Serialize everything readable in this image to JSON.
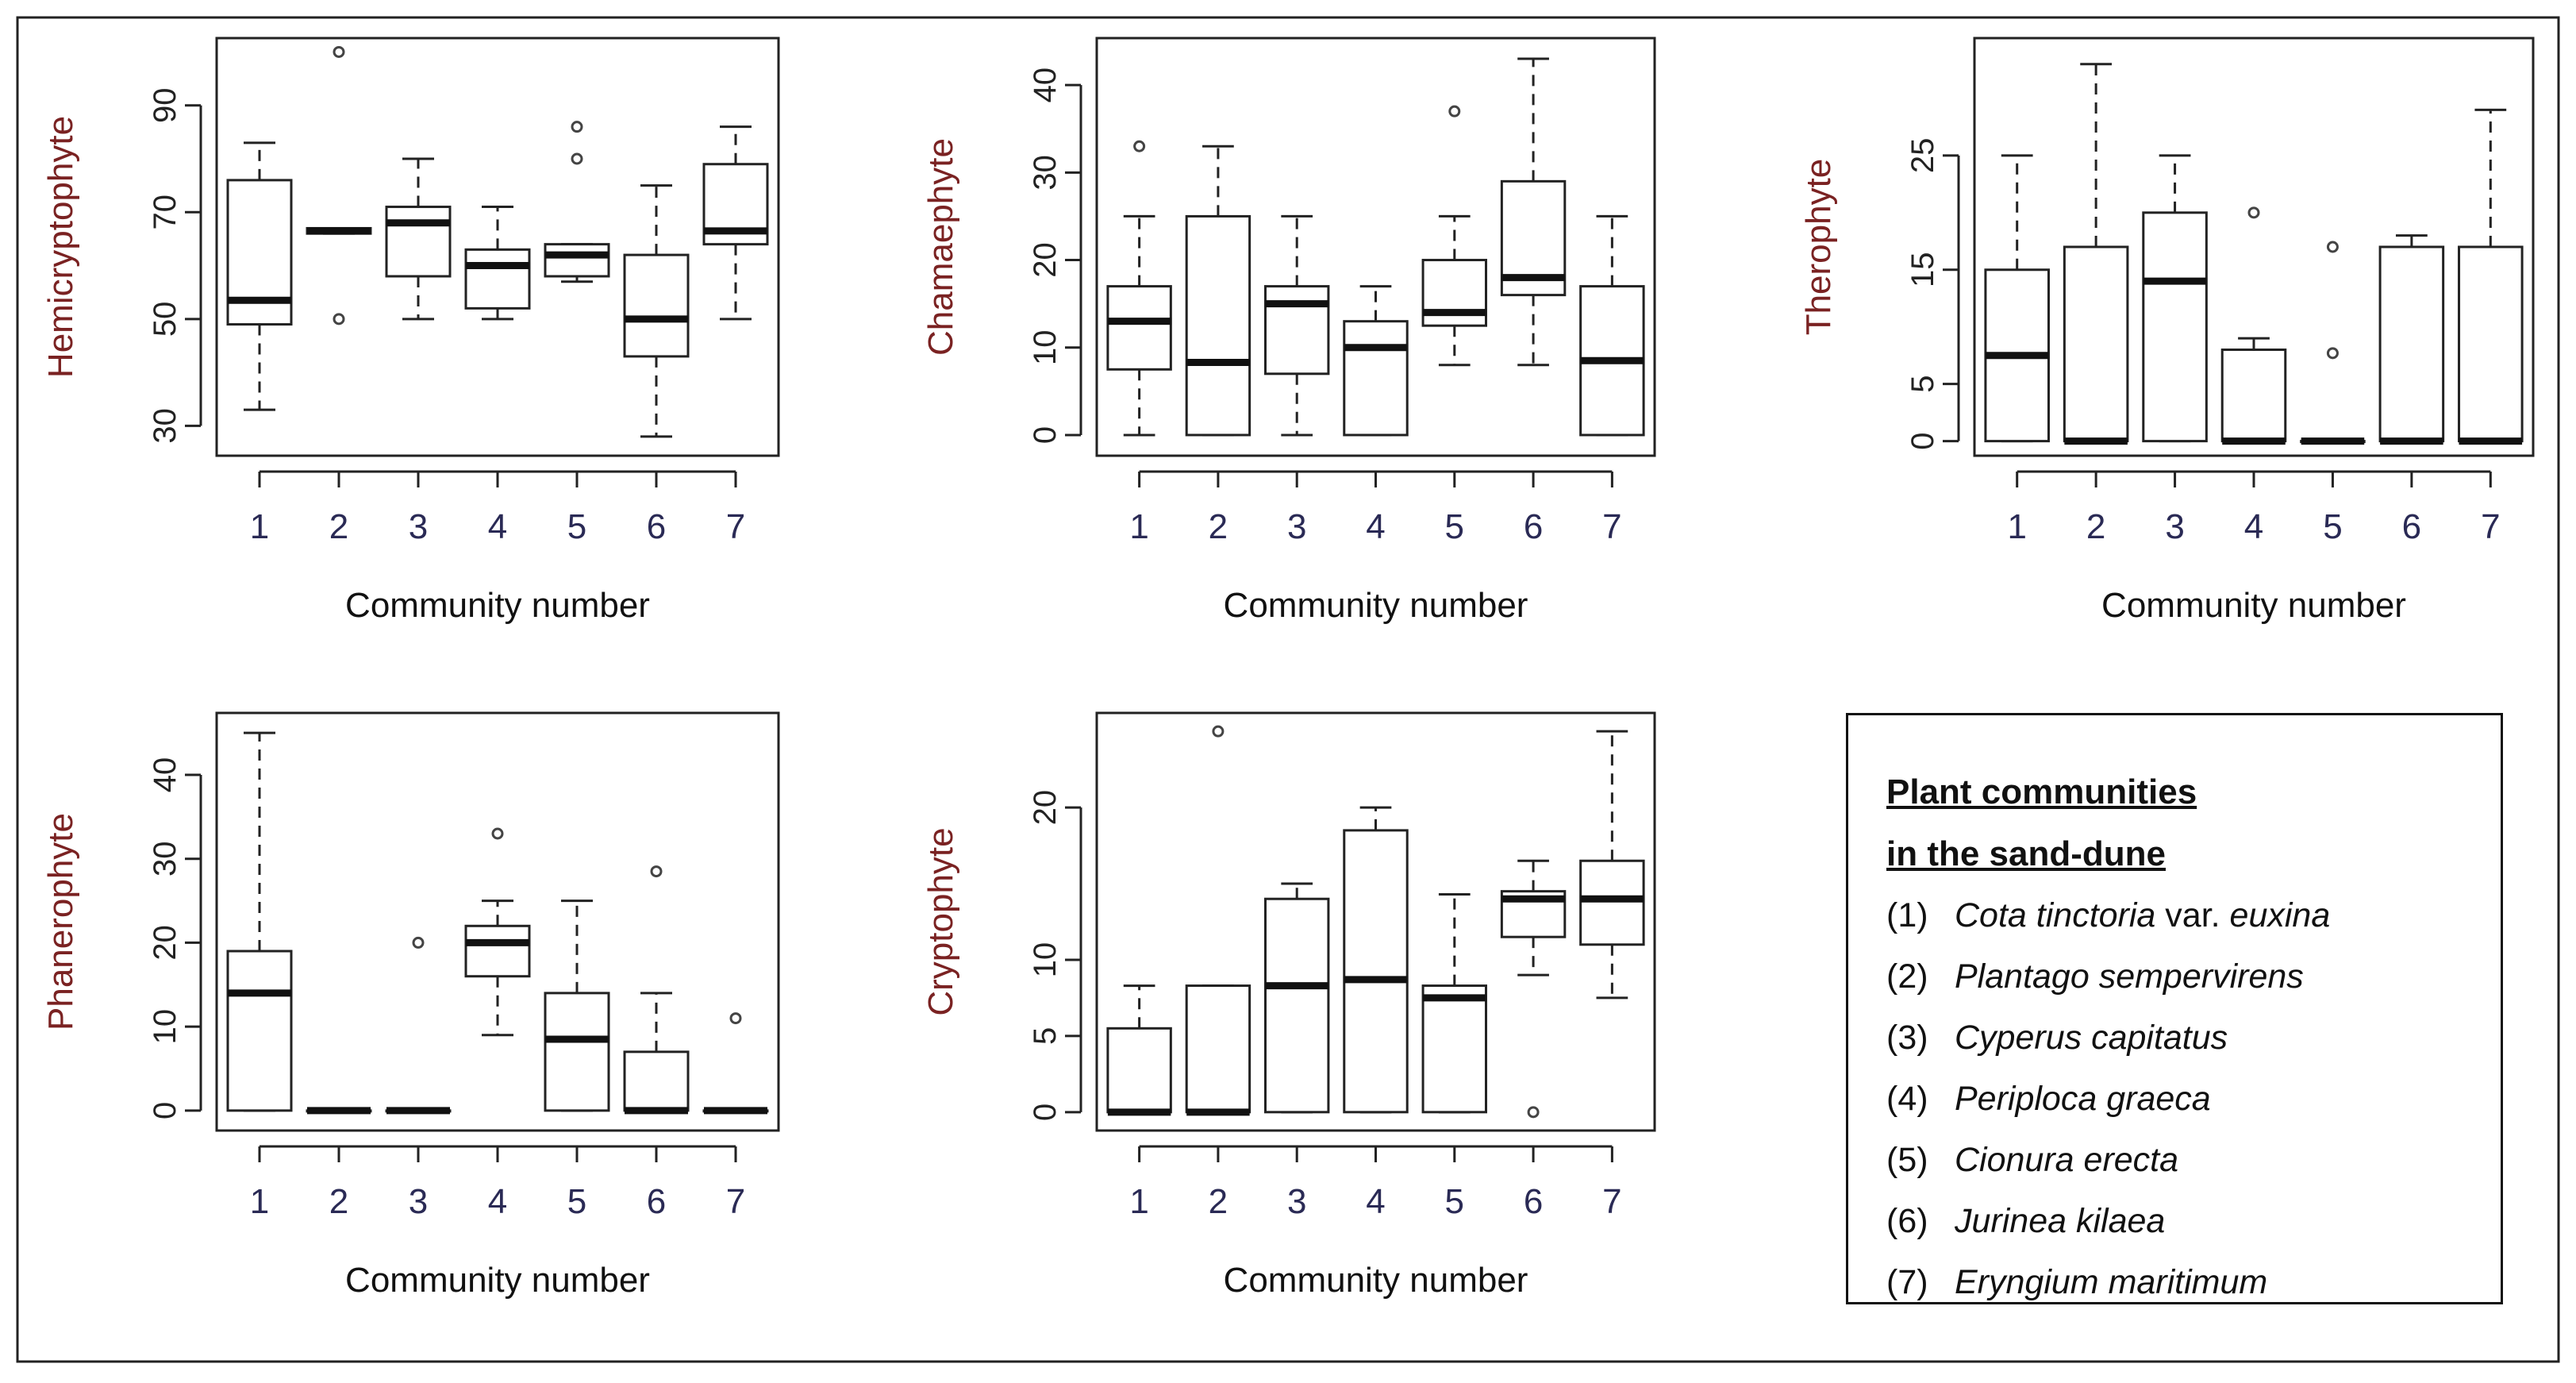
{
  "figure": {
    "xlabel": "Community number"
  },
  "chart_data": [
    {
      "type": "boxplot",
      "ylabel": "Hemicryptophyte",
      "xlabel": "Community number",
      "categories": [
        "1",
        "2",
        "3",
        "4",
        "5",
        "6",
        "7"
      ],
      "ylim": [
        25,
        102
      ],
      "yticks": [
        30,
        50,
        70,
        90
      ],
      "boxes": [
        {
          "category": "1",
          "min": 33,
          "q1": 49,
          "median": 53.5,
          "q3": 76,
          "max": 83,
          "outliers": []
        },
        {
          "category": "2",
          "min": 66,
          "q1": 66,
          "median": 66.5,
          "q3": 67,
          "max": 67,
          "outliers": [
            100,
            50
          ]
        },
        {
          "category": "3",
          "min": 50,
          "q1": 58,
          "median": 68,
          "q3": 71,
          "max": 80,
          "outliers": []
        },
        {
          "category": "4",
          "min": 50,
          "q1": 52,
          "median": 60,
          "q3": 63,
          "max": 71,
          "outliers": []
        },
        {
          "category": "5",
          "min": 57,
          "q1": 58,
          "median": 62,
          "q3": 64,
          "max": 64,
          "outliers": [
            86,
            80
          ]
        },
        {
          "category": "6",
          "min": 28,
          "q1": 43,
          "median": 50,
          "q3": 62,
          "max": 75,
          "outliers": []
        },
        {
          "category": "7",
          "min": 50,
          "q1": 64,
          "median": 66.5,
          "q3": 79,
          "max": 86,
          "outliers": []
        }
      ]
    },
    {
      "type": "boxplot",
      "ylabel": "Chamaephyte",
      "xlabel": "Community number",
      "categories": [
        "1",
        "2",
        "3",
        "4",
        "5",
        "6",
        "7"
      ],
      "ylim": [
        -2,
        45
      ],
      "yticks": [
        0,
        10,
        20,
        30,
        40
      ],
      "boxes": [
        {
          "category": "1",
          "min": 0,
          "q1": 7.5,
          "median": 13,
          "q3": 17,
          "max": 25,
          "outliers": [
            33
          ]
        },
        {
          "category": "2",
          "min": 0,
          "q1": 0,
          "median": 8.3,
          "q3": 25,
          "max": 33,
          "outliers": []
        },
        {
          "category": "3",
          "min": 0,
          "q1": 7,
          "median": 15,
          "q3": 17,
          "max": 25,
          "outliers": []
        },
        {
          "category": "4",
          "min": 0,
          "q1": 0,
          "median": 10,
          "q3": 13,
          "max": 17,
          "outliers": []
        },
        {
          "category": "5",
          "min": 8,
          "q1": 12.5,
          "median": 14,
          "q3": 20,
          "max": 25,
          "outliers": [
            37
          ]
        },
        {
          "category": "6",
          "min": 8,
          "q1": 16,
          "median": 18,
          "q3": 29,
          "max": 43,
          "outliers": []
        },
        {
          "category": "7",
          "min": 0,
          "q1": 0,
          "median": 8.5,
          "q3": 17,
          "max": 25,
          "outliers": []
        }
      ]
    },
    {
      "type": "boxplot",
      "ylabel": "Therophyte",
      "xlabel": "Community number",
      "categories": [
        "1",
        "2",
        "3",
        "4",
        "5",
        "6",
        "7"
      ],
      "ylim": [
        -1,
        35
      ],
      "yticks": [
        0,
        5,
        15,
        25
      ],
      "boxes": [
        {
          "category": "1",
          "min": 0,
          "q1": 0,
          "median": 7.5,
          "q3": 15,
          "max": 25,
          "outliers": []
        },
        {
          "category": "2",
          "min": 0,
          "q1": 0,
          "median": 0,
          "q3": 17,
          "max": 33,
          "outliers": []
        },
        {
          "category": "3",
          "min": 0,
          "q1": 0,
          "median": 14,
          "q3": 20,
          "max": 25,
          "outliers": []
        },
        {
          "category": "4",
          "min": 0,
          "q1": 0,
          "median": 0,
          "q3": 8,
          "max": 9,
          "outliers": [
            20
          ]
        },
        {
          "category": "5",
          "min": 0,
          "q1": 0,
          "median": 0,
          "q3": 0,
          "max": 0,
          "outliers": [
            17,
            7.7
          ]
        },
        {
          "category": "6",
          "min": 0,
          "q1": 0,
          "median": 0,
          "q3": 17,
          "max": 18,
          "outliers": []
        },
        {
          "category": "7",
          "min": 0,
          "q1": 0,
          "median": 0,
          "q3": 17,
          "max": 29,
          "outliers": []
        }
      ]
    },
    {
      "type": "boxplot",
      "ylabel": "Phanerophyte",
      "xlabel": "Community number",
      "categories": [
        "1",
        "2",
        "3",
        "4",
        "5",
        "6",
        "7"
      ],
      "ylim": [
        -2,
        47
      ],
      "yticks": [
        0,
        10,
        20,
        30,
        40
      ],
      "boxes": [
        {
          "category": "1",
          "min": 0,
          "q1": 0,
          "median": 14,
          "q3": 19,
          "max": 45,
          "outliers": []
        },
        {
          "category": "2",
          "min": 0,
          "q1": 0,
          "median": 0,
          "q3": 0,
          "max": 0,
          "outliers": []
        },
        {
          "category": "3",
          "min": 0,
          "q1": 0,
          "median": 0,
          "q3": 0,
          "max": 0,
          "outliers": [
            20
          ]
        },
        {
          "category": "4",
          "min": 9,
          "q1": 16,
          "median": 20,
          "q3": 22,
          "max": 25,
          "outliers": [
            33
          ]
        },
        {
          "category": "5",
          "min": 0,
          "q1": 0,
          "median": 8.5,
          "q3": 14,
          "max": 25,
          "outliers": []
        },
        {
          "category": "6",
          "min": 0,
          "q1": 0,
          "median": 0,
          "q3": 7,
          "max": 14,
          "outliers": [
            28.5
          ]
        },
        {
          "category": "7",
          "min": 0,
          "q1": 0,
          "median": 0,
          "q3": 0,
          "max": 0,
          "outliers": [
            11
          ]
        }
      ]
    },
    {
      "type": "boxplot",
      "ylabel": "Cryptophyte",
      "xlabel": "Community number",
      "categories": [
        "1",
        "2",
        "3",
        "4",
        "5",
        "6",
        "7"
      ],
      "ylim": [
        -1,
        26
      ],
      "yticks": [
        0,
        5,
        10,
        20
      ],
      "boxes": [
        {
          "category": "1",
          "min": 0,
          "q1": 0,
          "median": 0,
          "q3": 5.5,
          "max": 8.3,
          "outliers": []
        },
        {
          "category": "2",
          "min": 0,
          "q1": 0,
          "median": 0,
          "q3": 8.3,
          "max": 8.3,
          "outliers": [
            25
          ]
        },
        {
          "category": "3",
          "min": 0,
          "q1": 0,
          "median": 8.3,
          "q3": 14,
          "max": 15,
          "outliers": []
        },
        {
          "category": "4",
          "min": 0,
          "q1": 0,
          "median": 8.7,
          "q3": 18.5,
          "max": 20,
          "outliers": []
        },
        {
          "category": "5",
          "min": 0,
          "q1": 0,
          "median": 7.5,
          "q3": 8.3,
          "max": 14.3,
          "outliers": []
        },
        {
          "category": "6",
          "min": 9,
          "q1": 11.5,
          "median": 14,
          "q3": 14.5,
          "max": 16.5,
          "outliers": [
            0
          ]
        },
        {
          "category": "7",
          "min": 7.5,
          "q1": 11,
          "median": 14,
          "q3": 16.5,
          "max": 25,
          "outliers": []
        }
      ]
    }
  ],
  "legend": {
    "title_line1": "Plant communities",
    "title_line2": "in the sand-dune",
    "items": [
      {
        "num": "(1)",
        "name": "Cota tinctoria",
        "suffix": " var. ",
        "name2": "euxina"
      },
      {
        "num": "(2)",
        "name": "Plantago sempervirens",
        "suffix": "",
        "name2": ""
      },
      {
        "num": "(3)",
        "name": "Cyperus capitatus",
        "suffix": "",
        "name2": ""
      },
      {
        "num": "(4)",
        "name": "Periploca graeca",
        "suffix": "",
        "name2": ""
      },
      {
        "num": "(5)",
        "name": "Cionura erecta",
        "suffix": "",
        "name2": ""
      },
      {
        "num": "(6)",
        "name": "Jurinea kilaea",
        "suffix": "",
        "name2": ""
      },
      {
        "num": "(7)",
        "name": "Eryngium maritimum",
        "suffix": "",
        "name2": ""
      }
    ]
  }
}
